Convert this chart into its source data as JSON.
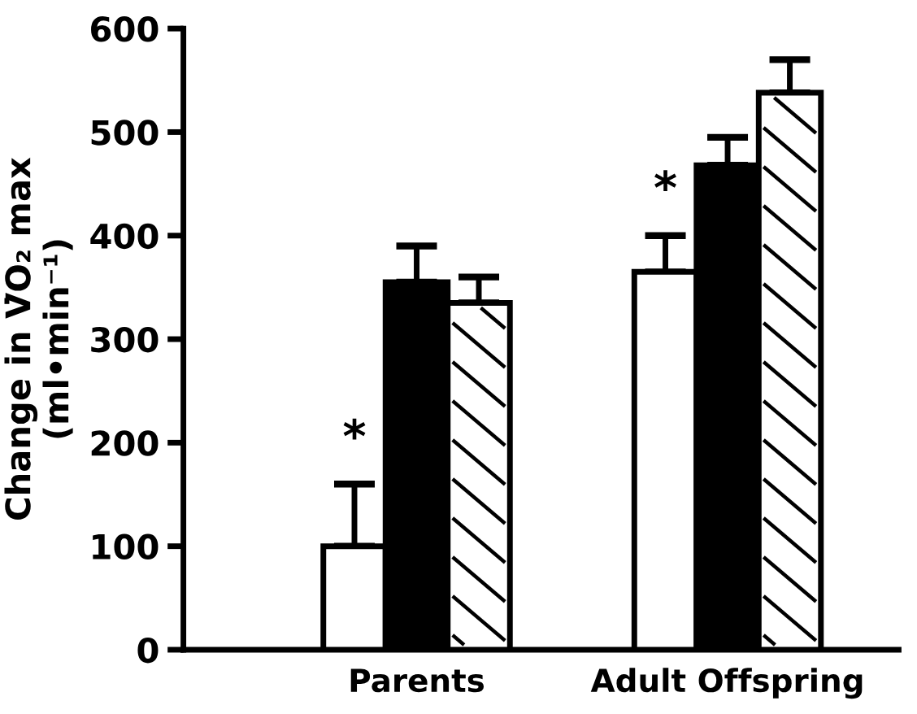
{
  "chart_data": {
    "type": "bar",
    "ylabel": "Change in V̇O₂ max\n(ml•min⁻¹)",
    "categories": [
      "Parents",
      "Adult Offspring"
    ],
    "series": [
      {
        "color": "#ffffff",
        "values": [
          100,
          365
        ],
        "errors": [
          [
            100,
            160
          ],
          [
            365,
            400
          ]
        ]
      },
      {
        "color": "#000000",
        "values": [
          355,
          468
        ],
        "errors": [
          [
            355,
            390
          ],
          [
            468,
            495
          ]
        ]
      },
      {
        "color": "#ffffff",
        "values": [
          335,
          538
        ],
        "errors": [
          [
            335,
            360
          ],
          [
            538,
            570
          ]
        ]
      }
    ],
    "annotations": [
      "*",
      "*"
    ],
    "ylim": [
      0,
      600
    ],
    "yticks": [
      0,
      100,
      200,
      300,
      400,
      500,
      600
    ],
    "grid": false,
    "legend": false
  }
}
